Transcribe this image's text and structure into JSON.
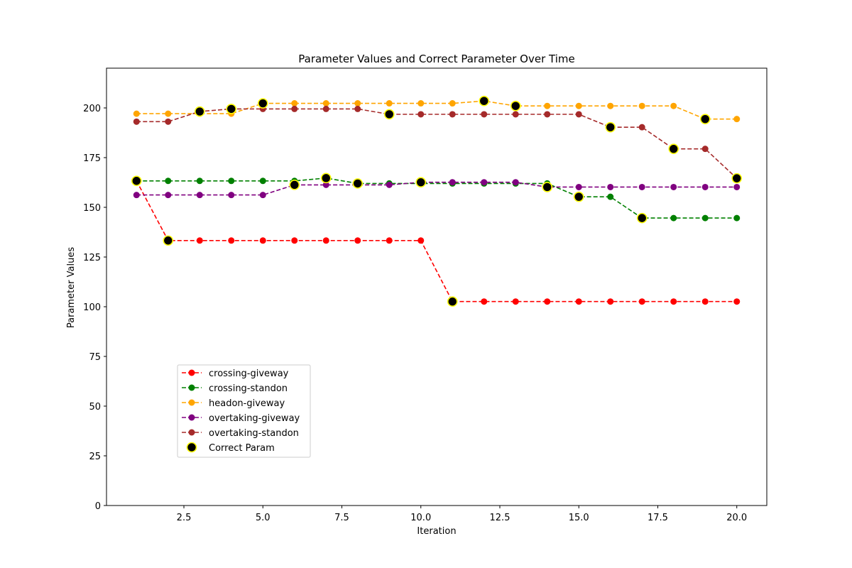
{
  "chart_data": {
    "type": "line",
    "title": "Parameter Values and Correct Parameter Over Time",
    "xlabel": "Iteration",
    "ylabel": "Parameter Values",
    "xlim": [
      0.05,
      20.95
    ],
    "ylim": [
      0,
      220
    ],
    "x_ticks": [
      2.5,
      5.0,
      7.5,
      10.0,
      12.5,
      15.0,
      17.5,
      20.0
    ],
    "y_ticks": [
      0,
      25,
      50,
      75,
      100,
      125,
      150,
      175,
      200
    ],
    "legend_position": "lower-left",
    "grid": false,
    "x": [
      1,
      2,
      3,
      4,
      5,
      6,
      7,
      8,
      9,
      10,
      11,
      12,
      13,
      14,
      15,
      16,
      17,
      18,
      19,
      20
    ],
    "series": [
      {
        "name": "crossing-giveway",
        "color": "#ff0000",
        "values": [
          163.3,
          133.3,
          133.3,
          133.3,
          133.3,
          133.3,
          133.3,
          133.3,
          133.3,
          133.3,
          102.6,
          102.6,
          102.6,
          102.6,
          102.6,
          102.6,
          102.6,
          102.6,
          102.6,
          102.6
        ]
      },
      {
        "name": "crossing-standon",
        "color": "#008000",
        "values": [
          163.3,
          163.3,
          163.3,
          163.3,
          163.3,
          163.3,
          164.7,
          162.0,
          162.0,
          162.0,
          162.0,
          162.0,
          162.0,
          162.0,
          155.3,
          155.3,
          144.6,
          144.6,
          144.6,
          144.6
        ]
      },
      {
        "name": "headon-giveway",
        "color": "#ffa500",
        "values": [
          197.1,
          197.1,
          197.1,
          197.1,
          202.3,
          202.3,
          202.3,
          202.3,
          202.3,
          202.3,
          202.3,
          203.5,
          201.0,
          201.0,
          201.0,
          201.0,
          201.0,
          201.0,
          194.4,
          194.4
        ]
      },
      {
        "name": "overtaking-giveway",
        "color": "#800080",
        "values": [
          156.2,
          156.2,
          156.2,
          156.2,
          156.2,
          161.3,
          161.3,
          161.3,
          161.3,
          162.6,
          162.6,
          162.6,
          162.6,
          160.2,
          160.2,
          160.2,
          160.2,
          160.2,
          160.2,
          160.2
        ]
      },
      {
        "name": "overtaking-standon",
        "color": "#a52a2a",
        "values": [
          193.1,
          193.1,
          198.2,
          199.5,
          199.5,
          199.5,
          199.5,
          199.5,
          196.8,
          196.8,
          196.8,
          196.8,
          196.8,
          196.8,
          196.8,
          190.3,
          190.3,
          179.4,
          179.4,
          164.6
        ]
      }
    ],
    "correct_param": {
      "name": "Correct Param",
      "x": [
        1,
        2,
        3,
        4,
        5,
        6,
        7,
        8,
        9,
        10,
        11,
        12,
        13,
        14,
        15,
        16,
        17,
        18,
        19,
        20
      ],
      "values": [
        163.3,
        133.3,
        198.2,
        199.5,
        202.3,
        161.3,
        164.7,
        162.0,
        196.8,
        162.6,
        102.6,
        203.5,
        201.0,
        160.2,
        155.3,
        190.3,
        144.6,
        179.4,
        194.4,
        164.6
      ]
    }
  }
}
